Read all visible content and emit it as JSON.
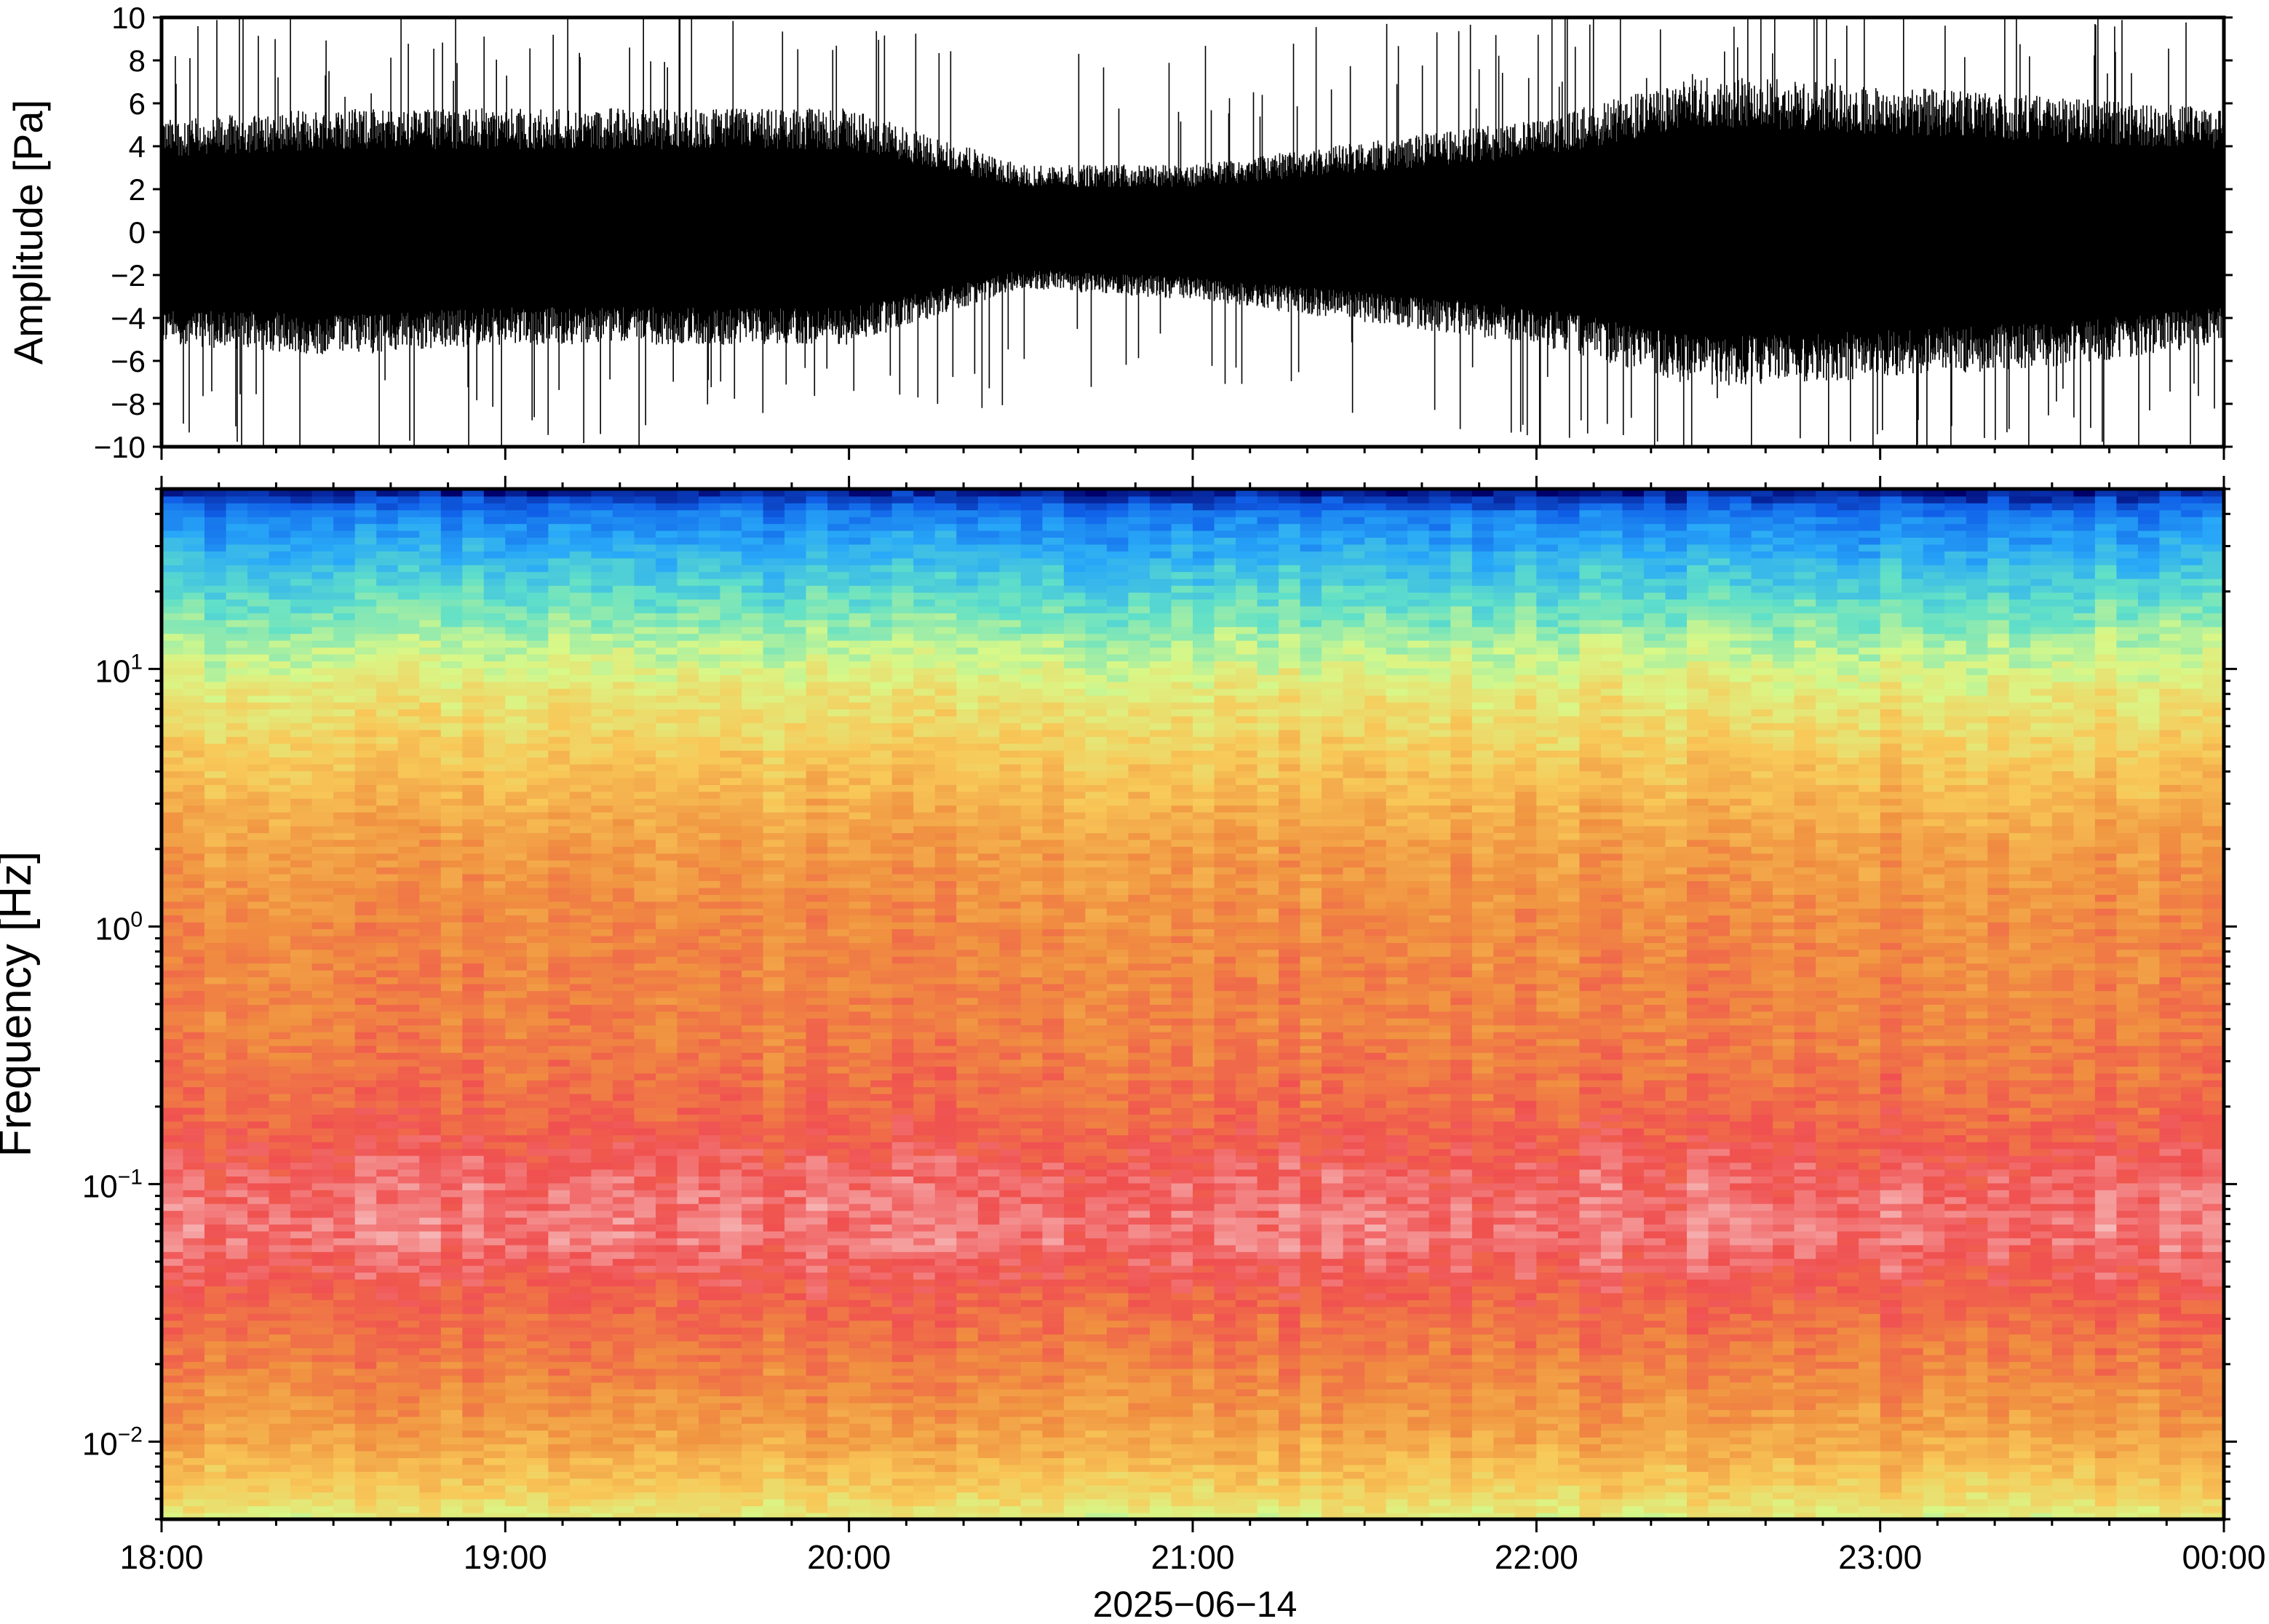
{
  "chart_data": [
    {
      "type": "line",
      "ylabel": "Amplitude [Pa]",
      "ylim": [
        -10,
        10
      ],
      "yticks": [
        -10,
        -8,
        -6,
        -4,
        -2,
        0,
        2,
        4,
        6,
        8,
        10
      ],
      "ytick_labels": [
        "−10",
        "−8",
        "−6",
        "−4",
        "−2",
        "0",
        "2",
        "4",
        "6",
        "8",
        "10"
      ],
      "x_range": [
        "18:00",
        "00:00"
      ],
      "series": [
        {
          "x": [
            "18:00",
            "18:30",
            "19:00",
            "19:30",
            "20:00",
            "20:30",
            "21:00",
            "21:30",
            "22:00",
            "22:30",
            "23:00",
            "23:30",
            "00:00"
          ],
          "envelope_max": [
            5.0,
            5.5,
            5.5,
            5.5,
            5.5,
            3.0,
            3.0,
            4.0,
            5.0,
            7.0,
            6.5,
            6.0,
            5.5
          ],
          "envelope_min": [
            -5.0,
            -5.5,
            -5.0,
            -5.0,
            -5.0,
            -2.5,
            -3.0,
            -4.0,
            -5.0,
            -7.0,
            -6.5,
            -6.0,
            -5.0
          ],
          "peak_max": 10,
          "peak_min": -10
        }
      ],
      "grid": false
    },
    {
      "type": "heatmap",
      "ylabel": "Frequency [Hz]",
      "xlabel": "2025−06−14",
      "yscale": "log",
      "ylim": [
        0.005,
        50
      ],
      "yticks": [
        0.01,
        0.1,
        1,
        10
      ],
      "ytick_labels": [
        {
          "base": "10",
          "exp": "−2"
        },
        {
          "base": "10",
          "exp": "−1"
        },
        {
          "base": "10",
          "exp": "0"
        },
        {
          "base": "10",
          "exp": "1"
        }
      ],
      "xticks": [
        "18:00",
        "19:00",
        "20:00",
        "21:00",
        "22:00",
        "23:00",
        "00:00"
      ],
      "colormap": [
        "#00006b",
        "#1060e8",
        "#28a8f8",
        "#60e0c8",
        "#d8f888",
        "#f8c858",
        "#f09040",
        "#f05050",
        "#f8c8c8"
      ],
      "power_profile": {
        "log10_frequency": [
          -2.3,
          -2.2,
          -2.0,
          -1.7,
          -1.5,
          -1.2,
          -1.0,
          -0.7,
          -0.4,
          0.0,
          0.3,
          0.6,
          0.9,
          1.1,
          1.4,
          1.6,
          1.7
        ],
        "level": [
          0.52,
          0.6,
          0.7,
          0.78,
          0.82,
          0.92,
          0.9,
          0.82,
          0.78,
          0.76,
          0.72,
          0.64,
          0.55,
          0.46,
          0.3,
          0.18,
          0.02
        ]
      },
      "grid": false
    }
  ]
}
